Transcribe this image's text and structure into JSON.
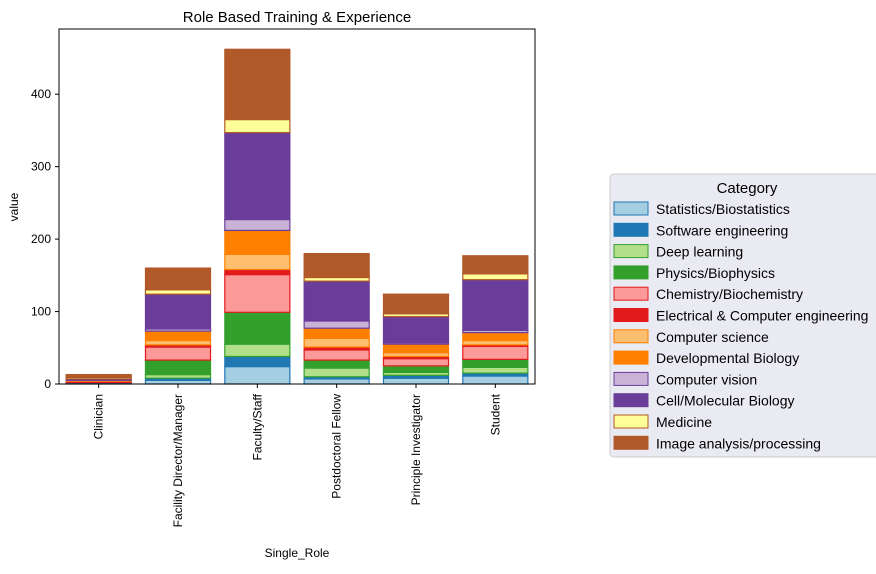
{
  "chart_data": {
    "type": "bar",
    "stacked": true,
    "title": "Role Based Training & Experience",
    "xlabel": "Single_Role",
    "ylabel": "value",
    "ylim": [
      0,
      490
    ],
    "yticks": [
      0,
      100,
      200,
      300,
      400
    ],
    "grid": false,
    "legend": {
      "title": "Category",
      "placement": "right"
    },
    "categories": [
      "Clinician",
      "Facility Director/Manager",
      "Faculty/Staff",
      "Postdoctoral Fellow",
      "Principle Investigator",
      "Student"
    ],
    "series": [
      {
        "name": "Statistics/Biostatistics",
        "fill": "#a6cee3",
        "edge": "#1f78b4",
        "values": [
          1,
          5,
          24,
          7,
          8,
          11
        ]
      },
      {
        "name": "Software engineering",
        "fill": "#1f78b4",
        "edge": "#1f78b4",
        "values": [
          1,
          3,
          14,
          3,
          4,
          4
        ]
      },
      {
        "name": "Deep learning",
        "fill": "#b2df8a",
        "edge": "#33a02c",
        "values": [
          0,
          5,
          17,
          12,
          4,
          8
        ]
      },
      {
        "name": "Physics/Biophysics",
        "fill": "#33a02c",
        "edge": "#33a02c",
        "values": [
          0,
          20,
          44,
          11,
          9,
          11
        ]
      },
      {
        "name": "Chemistry/Biochemistry",
        "fill": "#fb9a99",
        "edge": "#e31a1c",
        "values": [
          2,
          18,
          52,
          14,
          10,
          18
        ]
      },
      {
        "name": "Electrical & Computer engineering",
        "fill": "#e31a1c",
        "edge": "#e31a1c",
        "values": [
          0,
          3,
          7,
          4,
          3,
          2
        ]
      },
      {
        "name": "Computer science",
        "fill": "#fdbf6f",
        "edge": "#ff7f00",
        "values": [
          0,
          6,
          21,
          12,
          5,
          6
        ]
      },
      {
        "name": "Developmental Biology",
        "fill": "#ff7f00",
        "edge": "#ff7f00",
        "values": [
          1,
          13,
          33,
          14,
          12,
          11
        ]
      },
      {
        "name": "Computer vision",
        "fill": "#cab2d6",
        "edge": "#6a3d9a",
        "values": [
          0,
          3,
          15,
          10,
          2,
          3
        ]
      },
      {
        "name": "Cell/Molecular Biology",
        "fill": "#6a3d9a",
        "edge": "#6a3d9a",
        "values": [
          2,
          48,
          120,
          55,
          36,
          70
        ]
      },
      {
        "name": "Medicine",
        "fill": "#ffff99",
        "edge": "#b15928",
        "values": [
          2,
          6,
          18,
          5,
          4,
          8
        ]
      },
      {
        "name": "Image analysis/processing",
        "fill": "#b15928",
        "edge": "#b15928",
        "values": [
          4,
          30,
          97,
          33,
          27,
          25
        ]
      }
    ]
  }
}
